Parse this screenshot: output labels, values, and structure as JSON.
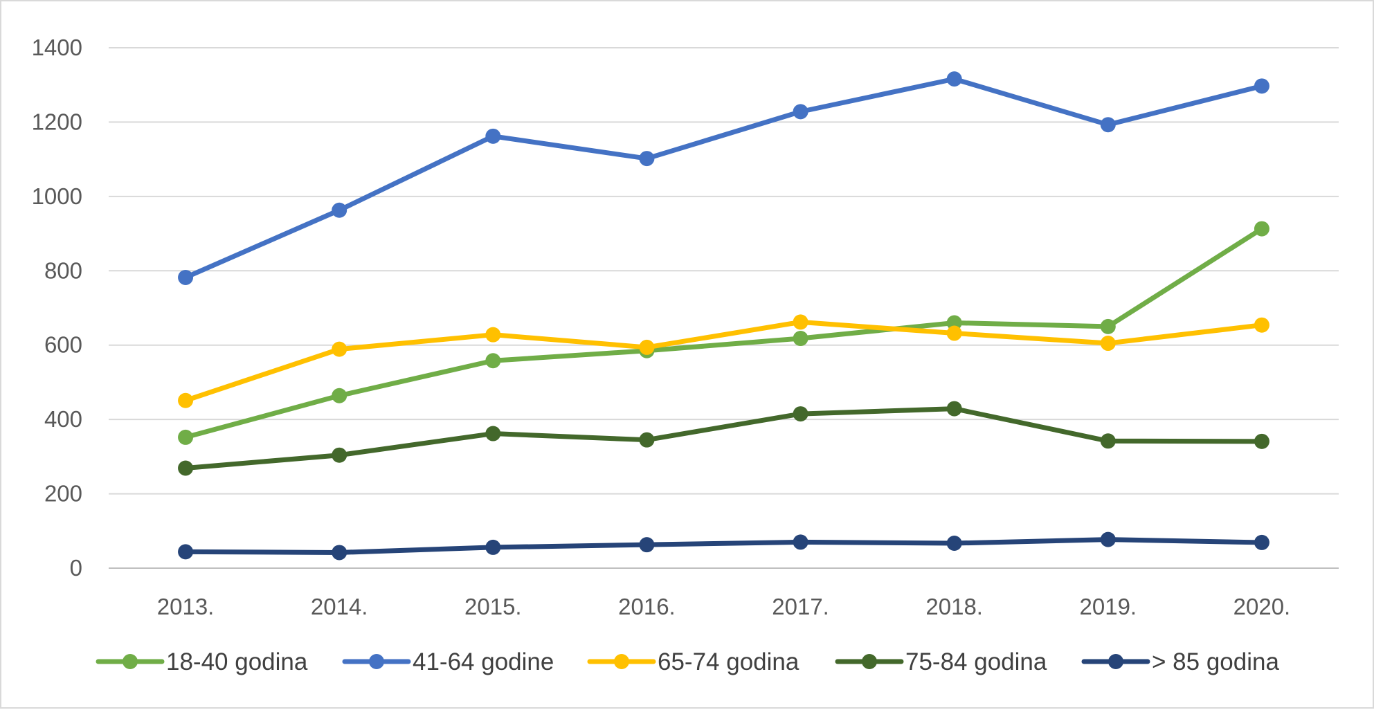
{
  "chart_data": {
    "type": "line",
    "title": "",
    "xlabel": "",
    "ylabel": "",
    "categories": [
      "2013.",
      "2014.",
      "2015.",
      "2016.",
      "2017.",
      "2018.",
      "2019.",
      "2020."
    ],
    "ylim": [
      0,
      1400
    ],
    "yticks": [
      0,
      200,
      400,
      600,
      800,
      1000,
      1200,
      1400
    ],
    "grid": "horizontal",
    "legend_position": "bottom",
    "series": [
      {
        "name": "18-40 godina",
        "color": "#70ad47",
        "values": [
          352,
          464,
          558,
          585,
          618,
          660,
          650,
          913
        ]
      },
      {
        "name": "41-64 godine",
        "color": "#4472c4",
        "values": [
          782,
          963,
          1162,
          1102,
          1228,
          1316,
          1193,
          1297
        ]
      },
      {
        "name": "65-74 godina",
        "color": "#ffc000",
        "values": [
          451,
          589,
          628,
          594,
          662,
          632,
          605,
          654
        ]
      },
      {
        "name": "75-84 godina",
        "color": "#43682b",
        "values": [
          269,
          304,
          362,
          345,
          415,
          429,
          342,
          341
        ]
      },
      {
        "name": "> 85 godina",
        "color": "#264478",
        "values": [
          44,
          42,
          56,
          63,
          70,
          67,
          77,
          69
        ]
      }
    ]
  }
}
